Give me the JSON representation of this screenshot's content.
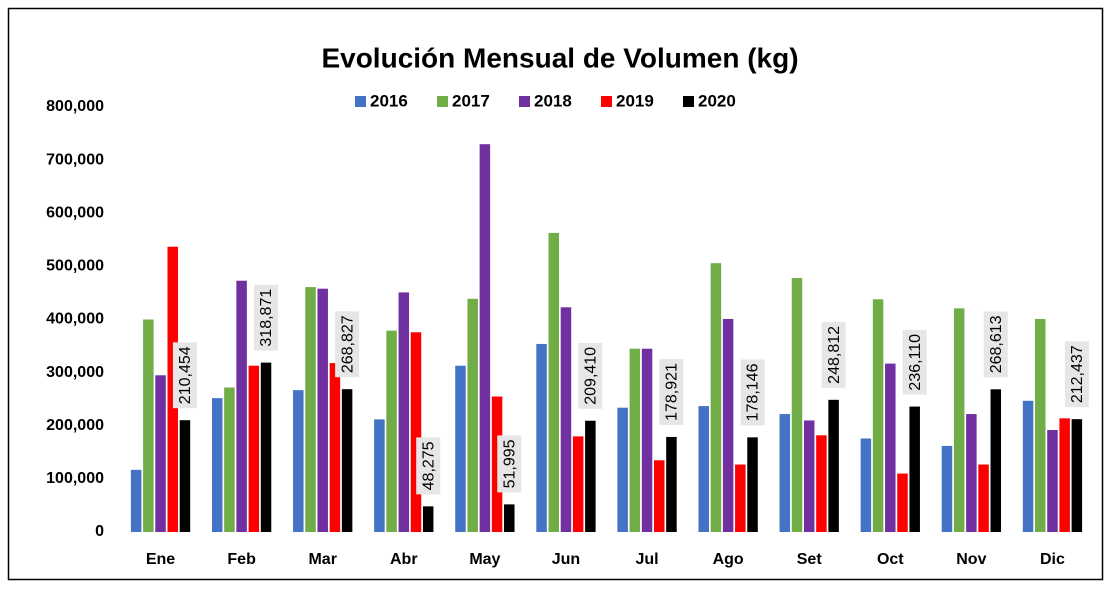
{
  "chart_data": {
    "type": "bar",
    "title": "Evolución Mensual de Volumen (kg)",
    "categories": [
      "Ene",
      "Feb",
      "Mar",
      "Abr",
      "May",
      "Jun",
      "Jul",
      "Ago",
      "Set",
      "Oct",
      "Nov",
      "Dic"
    ],
    "series": [
      {
        "name": "2016",
        "color": "#4472c4",
        "values": [
          117000,
          252000,
          267000,
          212000,
          313000,
          354000,
          234000,
          237000,
          222000,
          176000,
          162000,
          247000
        ]
      },
      {
        "name": "2017",
        "color": "#70ad47",
        "values": [
          400000,
          272000,
          461000,
          379000,
          439000,
          563000,
          345000,
          506000,
          478000,
          438000,
          421000,
          401000
        ]
      },
      {
        "name": "2018",
        "color": "#7030a0",
        "values": [
          295000,
          473000,
          458000,
          451000,
          730000,
          423000,
          345000,
          401000,
          210000,
          317000,
          222000,
          192000
        ]
      },
      {
        "name": "2019",
        "color": "#ff0000",
        "values": [
          537000,
          313000,
          318000,
          376000,
          255000,
          180000,
          135000,
          127000,
          182000,
          110000,
          127000,
          214000
        ]
      },
      {
        "name": "2020",
        "color": "#000000",
        "values": [
          210454,
          318871,
          268827,
          48275,
          51995,
          209410,
          178921,
          178146,
          248812,
          236110,
          268613,
          212437
        ],
        "value_labels": [
          "210,454",
          "318,871",
          "268,827",
          "48,275",
          "51,995",
          "209,410",
          "178,921",
          "178,146",
          "248,812",
          "236,110",
          "268,613",
          "212,437"
        ]
      }
    ],
    "ylim": [
      0,
      800000
    ],
    "yticks": [
      0,
      {
        "value": 100000,
        "label": "100,000"
      },
      {
        "value": 200000,
        "label": "200,000"
      },
      {
        "value": 300000,
        "label": "300,000"
      },
      {
        "value": 400000,
        "label": "400,000"
      },
      {
        "value": 500000,
        "label": "500,000"
      },
      {
        "value": 600000,
        "label": "600,000"
      },
      {
        "value": 700000,
        "label": "700,000"
      },
      {
        "value": 800000,
        "label": "800,000"
      }
    ],
    "grid": false,
    "legend": "top"
  }
}
